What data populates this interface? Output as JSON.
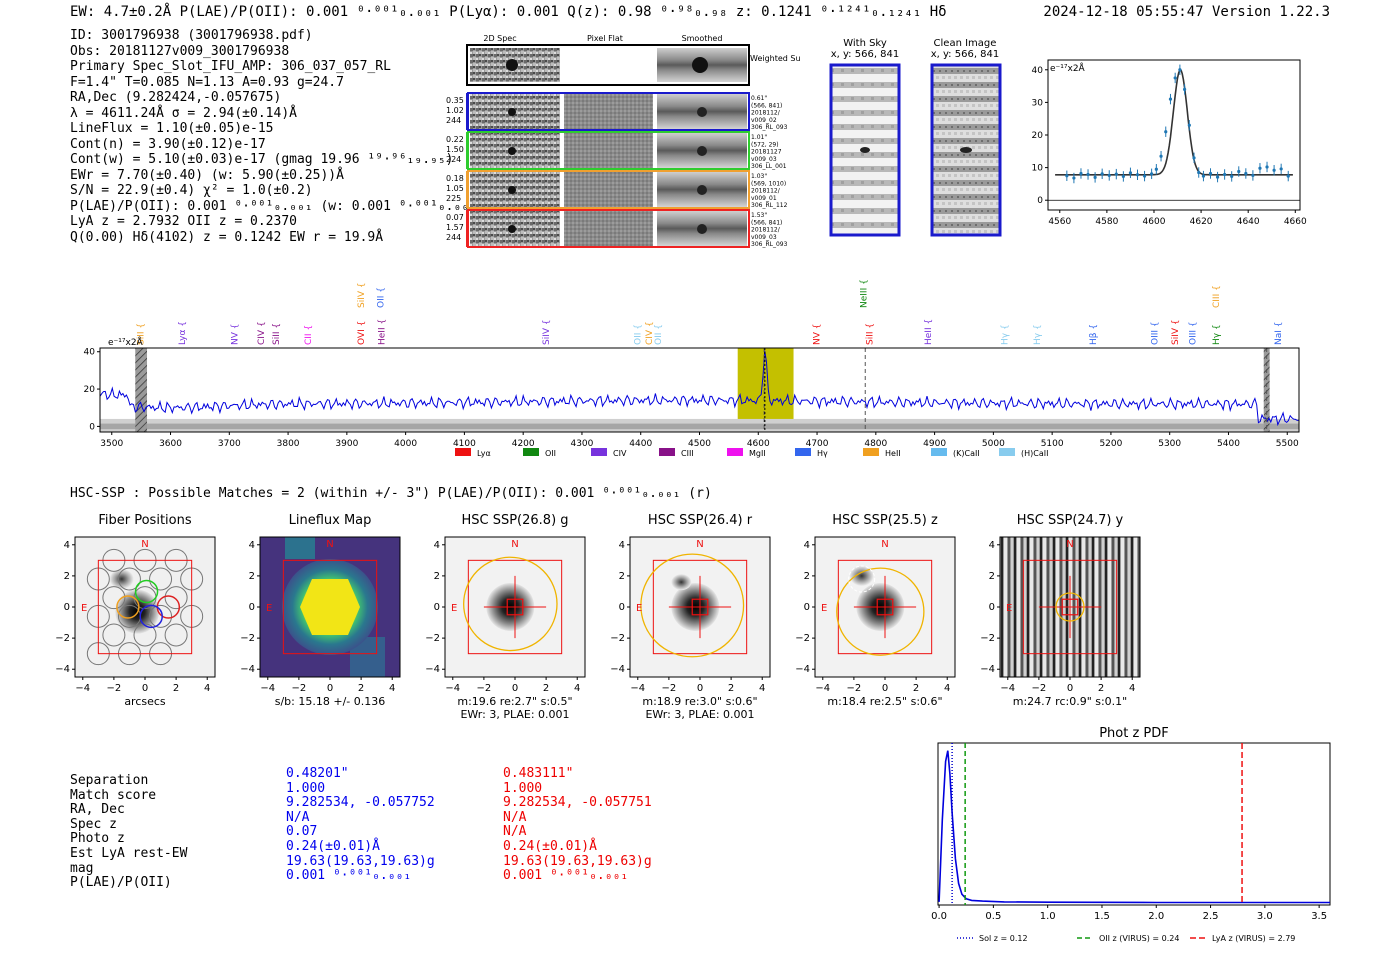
{
  "header": {
    "left": "EW: 4.7±0.2Å  P(LAE)/P(OII): 0.001 ⁰·⁰⁰¹₀.₀₀₁  P(Lyα): 0.001  Q(z): 0.98 ⁰·⁹⁸₀.₉₈  z: 0.1241 ⁰·¹²⁴¹₀.₁₂₄₁ Hδ",
    "right": "2024-12-18 05:55:47  Version 1.22.3"
  },
  "info": [
    "ID: 3001796938 (3001796938.pdf)",
    "Obs: 20181127v009_3001796938",
    "Primary Spec_Slot_IFU_AMP: 306_037_057_RL",
    "F=1.4\"  T=0.085  N=1.13  A=0.93  g=24.7",
    "RA,Dec (9.282424,-0.057675)",
    "λ = 4611.24Å  σ = 2.94(±0.14)Å",
    "LineFlux = 1.10(±0.05)e-15",
    "Cont(n) = 3.90(±0.12)e-17",
    "Cont(w) = 5.10(±0.03)e-17 (gmag 19.96 ¹⁹·⁹⁶₁₉.₉₅)",
    "EWr = 7.70(±0.40) (w: 5.90(±0.25))Å",
    "S/N = 22.9(±0.4)  χ² = 1.0(±0.2)",
    "P(LAE)/P(OII): 0.001 ⁰·⁰⁰¹₀.₀₀₁ (w: 0.001 ⁰·⁰⁰¹₀.₀₀₁)",
    "LyA z = 2.7932  OII z = 0.2370",
    "Q(0.00) Hδ(4102) z = 0.1242  EW r = 19.9Å"
  ],
  "cutouts": {
    "headers": [
      "2D Spec",
      "Pixel Flat",
      "Smoothed"
    ],
    "weighted_label": "Weighted Sum",
    "rows": [
      {
        "stats": "0.35\n1.02\n244",
        "color": "#1a1acc",
        "meta": "0.61\"\n(566, 841)\n2018112/\nv009_02\n306_RL_093"
      },
      {
        "stats": "0.22\n1.50\n224",
        "color": "#2ecc2e",
        "meta": "1.01\"\n(572, 29)\n20181127\nv009_03\n306_LL_001"
      },
      {
        "stats": "0.18\n1.05\n225",
        "color": "#f0a030",
        "meta": "1.03\"\n(569, 1010)\n2018112/\nv009_01\n306_RL_112"
      },
      {
        "stats": "0.07\n1.57\n244",
        "color": "#ee2222",
        "meta": "1.53\"\n(566, 841)\n2018112/\nv009_03\n306_RL_093"
      }
    ],
    "with_sky": {
      "title": "With Sky",
      "coords": "x, y: 566, 841"
    },
    "clean": {
      "title": "Clean Image",
      "coords": "x, y: 566, 841"
    }
  },
  "chart_data": [
    {
      "type": "line",
      "name": "zoom-spectrum",
      "unit_label": "e⁻¹⁷x2Å",
      "xlim": [
        4555,
        4662
      ],
      "ylim": [
        -3,
        43
      ],
      "xticks": [
        "4560",
        "4580",
        "4600",
        "4620",
        "4640",
        "4660"
      ],
      "yticks": [
        "0",
        "10",
        "20",
        "30",
        "40"
      ],
      "x": [
        4563,
        4566,
        4569,
        4572,
        4575,
        4578,
        4581,
        4584,
        4587,
        4590,
        4593,
        4596,
        4599,
        4601,
        4603,
        4605,
        4607,
        4609,
        4611,
        4613,
        4615,
        4617,
        4619,
        4621,
        4624,
        4627,
        4630,
        4633,
        4636,
        4639,
        4642,
        4645,
        4648,
        4651,
        4654,
        4657
      ],
      "y": [
        7.5,
        6.8,
        8.2,
        7.9,
        7.0,
        8.1,
        7.6,
        8.0,
        7.3,
        8.4,
        7.8,
        7.4,
        8.1,
        9.5,
        13.5,
        21,
        31,
        37.5,
        40,
        34,
        23,
        13,
        8.5,
        7.4,
        8.2,
        7.1,
        7.9,
        7.3,
        8.8,
        8.2,
        7.6,
        9.8,
        10.2,
        9.2,
        9.6,
        7.4
      ],
      "model": {
        "continuum": 7.8,
        "center": 4611.2,
        "sigma": 2.94,
        "peak": 40.0
      }
    },
    {
      "type": "line",
      "name": "full-spectrum",
      "unit_label": "e⁻¹⁷x2Å",
      "xlim": [
        3480,
        5520
      ],
      "ylim": [
        -3,
        42
      ],
      "xticks": [
        "3500",
        "3600",
        "3700",
        "3800",
        "3900",
        "4000",
        "4100",
        "4200",
        "4300",
        "4400",
        "4500",
        "4600",
        "4700",
        "4800",
        "4900",
        "5000",
        "5100",
        "5200",
        "5300",
        "5400",
        "5500"
      ],
      "yticks": [
        "0",
        "20",
        "40"
      ],
      "highlight": [
        4565,
        4660
      ],
      "baseline": 13,
      "line_center": 4611.2,
      "dashed_markers": [
        4610,
        4782,
        5465
      ],
      "hatched": [
        [
          3540,
          3560
        ],
        [
          5460,
          5470
        ]
      ],
      "legend": [
        "Lyα",
        "OII",
        "CIV",
        "CIII",
        "MgII",
        "Hγ",
        "HeII",
        "(K)CaII",
        "(H)CaII"
      ],
      "legend_colors": [
        "#ee1111",
        "#118811",
        "#7733dd",
        "#881188",
        "#ee11ee",
        "#3366ee",
        "#f0a020",
        "#66bbee",
        "#88ccee"
      ],
      "line_labels": [
        {
          "w": 3550,
          "t": "SiII",
          "c": "#f0a020",
          "tier": 2
        },
        {
          "w": 3620,
          "t": "Lyα",
          "c": "#7733dd",
          "tier": 2
        },
        {
          "w": 3710,
          "t": "NV",
          "c": "#7733dd",
          "tier": 2
        },
        {
          "w": 3755,
          "t": "CIV",
          "c": "#881188",
          "tier": 2
        },
        {
          "w": 3780,
          "t": "SiII",
          "c": "#881188",
          "tier": 2
        },
        {
          "w": 3835,
          "t": "CII",
          "c": "#ee11ee",
          "tier": 2
        },
        {
          "w": 3925,
          "t": "OVI",
          "c": "#ee1111",
          "tier": 2
        },
        {
          "w": 3925,
          "t": "SiIV",
          "c": "#f0a020",
          "tier": 1
        },
        {
          "w": 3958,
          "t": "OII",
          "c": "#3366ee",
          "tier": 1
        },
        {
          "w": 3960,
          "t": "HeII",
          "c": "#881188",
          "tier": 2
        },
        {
          "w": 4240,
          "t": "SiIV",
          "c": "#7733dd",
          "tier": 2
        },
        {
          "w": 4395,
          "t": "OII",
          "c": "#88ccee",
          "tier": 2
        },
        {
          "w": 4415,
          "t": "CIV",
          "c": "#f0a020",
          "tier": 2
        },
        {
          "w": 4430,
          "t": "OII",
          "c": "#88ccee",
          "tier": 2
        },
        {
          "w": 4700,
          "t": "NV",
          "c": "#ee1111",
          "tier": 2
        },
        {
          "w": 4780,
          "t": "NeIII",
          "c": "#118811",
          "tier": 1
        },
        {
          "w": 4790,
          "t": "SiII",
          "c": "#ee1111",
          "tier": 2
        },
        {
          "w": 4890,
          "t": "HeII",
          "c": "#7733dd",
          "tier": 2
        },
        {
          "w": 5020,
          "t": "Hγ",
          "c": "#88ccee",
          "tier": 2
        },
        {
          "w": 5075,
          "t": "Hγ",
          "c": "#88ccee",
          "tier": 2
        },
        {
          "w": 5170,
          "t": "Hβ",
          "c": "#3366ee",
          "tier": 2
        },
        {
          "w": 5275,
          "t": "OIII",
          "c": "#3366ee",
          "tier": 2
        },
        {
          "w": 5310,
          "t": "SiIV",
          "c": "#ee1111",
          "tier": 2
        },
        {
          "w": 5340,
          "t": "OIII",
          "c": "#3366ee",
          "tier": 2
        },
        {
          "w": 5380,
          "t": "Hγ",
          "c": "#118811",
          "tier": 2
        },
        {
          "w": 5380,
          "t": "CIII",
          "c": "#f0a020",
          "tier": 1
        },
        {
          "w": 5485,
          "t": "NaI",
          "c": "#3366ee",
          "tier": 2
        }
      ]
    },
    {
      "type": "line",
      "name": "photz-pdf",
      "title": "Phot z PDF",
      "xlim": [
        -0.01,
        3.6
      ],
      "ylim": [
        0,
        1.05
      ],
      "xticks": [
        "0.0",
        "0.5",
        "1.0",
        "1.5",
        "2.0",
        "2.5",
        "3.0",
        "3.5"
      ],
      "x": [
        0.0,
        0.03,
        0.06,
        0.08,
        0.1,
        0.12,
        0.15,
        0.18,
        0.21,
        0.25,
        0.3,
        0.4,
        0.6,
        1.0,
        2.0,
        3.6
      ],
      "y": [
        0.02,
        0.55,
        0.93,
        1.0,
        0.85,
        0.6,
        0.3,
        0.14,
        0.07,
        0.04,
        0.03,
        0.025,
        0.02,
        0.018,
        0.016,
        0.016
      ],
      "vlines": [
        {
          "x": 0.12,
          "label": "Sol z = 0.12",
          "color": "#0000cc",
          "dash": "1,2"
        },
        {
          "x": 0.24,
          "label": "OII z (VIRUS) = 0.24",
          "color": "#119911",
          "dash": "5,3"
        },
        {
          "x": 2.79,
          "label": "LyA z (VIRUS) = 2.79",
          "color": "#ee1111",
          "dash": "6,3"
        }
      ]
    }
  ],
  "hsc_header": "HSC-SSP : Possible Matches = 2 (within +/- 3\")  P(LAE)/P(OII): 0.001 ⁰·⁰⁰¹₀.₀₀₁ (r)",
  "thumbs": [
    {
      "title": "Fiber Positions",
      "cap1": "arcsecs",
      "cap2": ""
    },
    {
      "title": "Lineflux Map",
      "cap1": "s/b: 15.18 +/- 0.136",
      "cap2": ""
    },
    {
      "title": "HSC SSP(26.8) g",
      "cap1": "m:19.6  re:2.7\"  s:0.5\"",
      "cap2": "EWr: 3, PLAE: 0.001"
    },
    {
      "title": "HSC SSP(26.4) r",
      "cap1": "m:18.9  re:3.0\"  s:0.6\"",
      "cap2": "EWr: 3, PLAE: 0.001"
    },
    {
      "title": "HSC SSP(25.5) z",
      "cap1": "m:18.4  re:2.5\"  s:0.6\"",
      "cap2": ""
    },
    {
      "title": "HSC SSP(24.7) y",
      "cap1": "m:24.7 rc:0.9\"  s:0.1\"",
      "cap2": ""
    }
  ],
  "thumb_axis": {
    "ticks": [
      "4",
      "2",
      "0",
      "−2",
      "−4"
    ],
    "xticks": [
      "−4",
      "−2",
      "0",
      "2",
      "4"
    ],
    "north": "N",
    "east": "E"
  },
  "matches": {
    "labels": [
      "Separation",
      "Match score",
      "RA, Dec",
      "Spec z",
      "Photo z",
      "Est LyA rest-EW",
      "mag",
      "P(LAE)/P(OII)"
    ],
    "col1": [
      "0.48201\"",
      "1.000",
      "9.282534, -0.057752",
      "N/A",
      "0.07",
      "0.24(±0.01)Å",
      "19.63(19.63,19.63)g",
      "0.001 ⁰·⁰⁰¹₀.₀₀₁"
    ],
    "col2": [
      "0.483111\"",
      "1.000",
      "9.282534, -0.057751",
      "N/A",
      "N/A",
      "0.24(±0.01)Å",
      "19.63(19.63,19.63)g",
      "0.001 ⁰·⁰⁰¹₀.₀₀₁"
    ]
  }
}
